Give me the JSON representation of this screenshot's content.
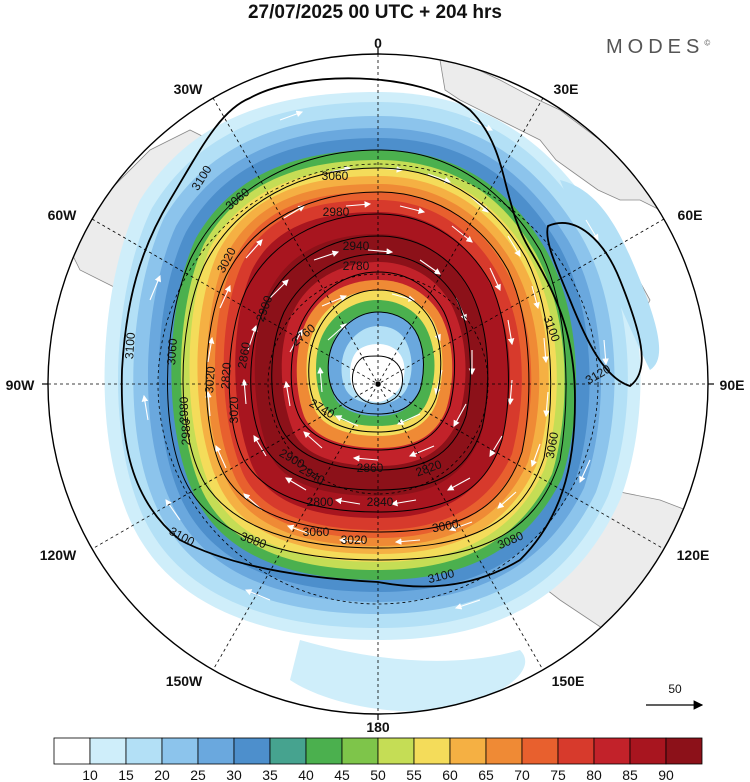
{
  "title": "27/07/2025  00 UTC  + 204 hrs",
  "brand": "MODES",
  "brand_mark": "©",
  "longitude_labels": [
    {
      "name": "lon-0",
      "text": "0"
    },
    {
      "name": "lon-30e",
      "text": "30E"
    },
    {
      "name": "lon-60e",
      "text": "60E"
    },
    {
      "name": "lon-90e",
      "text": "90E"
    },
    {
      "name": "lon-120e",
      "text": "120E"
    },
    {
      "name": "lon-150e",
      "text": "150E"
    },
    {
      "name": "lon-180",
      "text": "180"
    },
    {
      "name": "lon-150w",
      "text": "150W"
    },
    {
      "name": "lon-120w",
      "text": "120W"
    },
    {
      "name": "lon-90w",
      "text": "90W"
    },
    {
      "name": "lon-60w",
      "text": "60W"
    },
    {
      "name": "lon-30w",
      "text": "30W"
    }
  ],
  "contour_labels": [
    "3100",
    "3060",
    "3060",
    "3020",
    "2980",
    "2940",
    "2900",
    "2860",
    "2820",
    "2780",
    "2760",
    "2740",
    "3100",
    "3060",
    "3020",
    "2980",
    "2940",
    "2900",
    "2860",
    "2820",
    "2800",
    "2840",
    "3080",
    "3060",
    "3020",
    "3000",
    "3080",
    "3100",
    "3100",
    "3120",
    "3100",
    "3060",
    "3020",
    "2980"
  ],
  "vector_scale": "50",
  "colorbar": {
    "labels": [
      "10",
      "15",
      "20",
      "25",
      "30",
      "35",
      "40",
      "45",
      "50",
      "55",
      "60",
      "65",
      "70",
      "75",
      "80",
      "85",
      "90"
    ],
    "colors": [
      "#ffffff",
      "#cfeefa",
      "#b3e0f6",
      "#8cc4ec",
      "#6aa8de",
      "#4d8fcc",
      "#46a38f",
      "#4bb04e",
      "#7ec54a",
      "#c5dd55",
      "#f4dc5a",
      "#f5b043",
      "#ef8a35",
      "#e8602e",
      "#d73a2c",
      "#c2222a",
      "#a8151f",
      "#8c1119"
    ]
  },
  "colors": {
    "land": "#ececec",
    "coast": "#8a8a8a",
    "wind_vector": "#ffffff",
    "contour": "#000000"
  }
}
